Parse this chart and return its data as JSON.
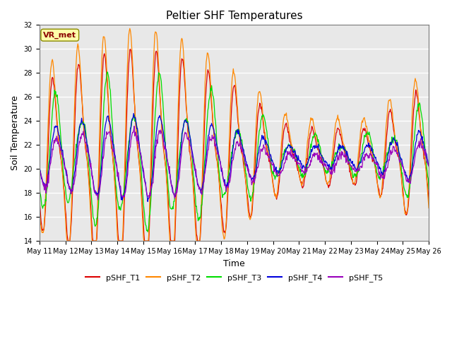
{
  "title": "Peltier SHF Temperatures",
  "xlabel": "Time",
  "ylabel": "Soil Temperature",
  "ylim": [
    14,
    32
  ],
  "annotation": "VR_met",
  "x_tick_labels": [
    "May 11",
    "May 12",
    "May 13",
    "May 14",
    "May 15",
    "May 16",
    "May 17",
    "May 18",
    "May 19",
    "May 20",
    "May 21",
    "May 22",
    "May 23",
    "May 24",
    "May 25",
    "May 26"
  ],
  "series_colors": {
    "pSHF_T1": "#dd0000",
    "pSHF_T2": "#ff8800",
    "pSHF_T3": "#00dd00",
    "pSHF_T4": "#0000dd",
    "pSHF_T5": "#9900bb"
  },
  "background_color": "#e8e8e8",
  "grid_color": "#ffffff",
  "title_fontsize": 11,
  "axis_label_fontsize": 9,
  "tick_fontsize": 7,
  "legend_fontsize": 8
}
